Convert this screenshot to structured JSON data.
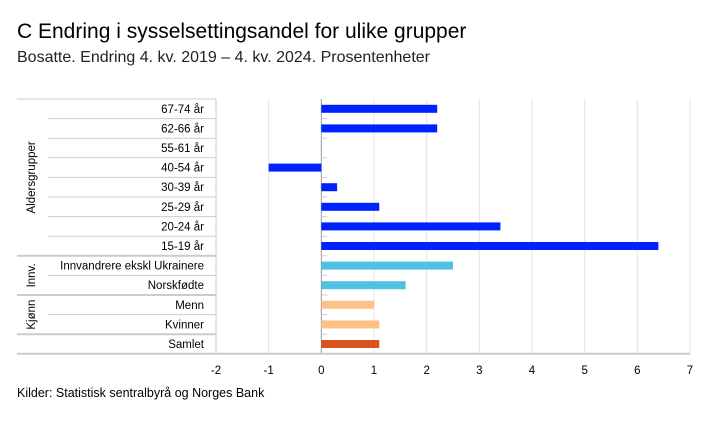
{
  "title": "C Endring i sysselsettingsandel for ulike grupper",
  "subtitle": "Bosatte. Endring 4. kv. 2019 – 4. kv. 2024. Prosentenheter",
  "source": "Kilder: Statistisk sentralbyrå og Norges Bank",
  "chart_data": {
    "type": "bar",
    "orientation": "horizontal",
    "categories": [
      "67-74 år",
      "62-66 år",
      "55-61 år",
      "40-54 år",
      "30-39 år",
      "25-29 år",
      "20-24 år",
      "15-19 år",
      "Innvandrere ekskl Ukrainere",
      "Norskfødte",
      "Menn",
      "Kvinner",
      "Samlet"
    ],
    "values": [
      2.2,
      2.2,
      0,
      -1.0,
      0.3,
      1.1,
      3.4,
      6.4,
      2.5,
      1.6,
      1.0,
      1.1,
      1.1
    ],
    "groups": [
      {
        "label": "Aldersgrupper",
        "rows": [
          0,
          7
        ]
      },
      {
        "label": "Innv.",
        "rows": [
          8,
          9
        ]
      },
      {
        "label": "Kjønn",
        "rows": [
          10,
          11
        ]
      }
    ],
    "colors": [
      "#0022ff",
      "#0022ff",
      "#0022ff",
      "#0022ff",
      "#0022ff",
      "#0022ff",
      "#0022ff",
      "#0022ff",
      "#4fc1e2",
      "#4fc1e2",
      "#fdc085",
      "#fdc085",
      "#d9541e"
    ],
    "xlim": [
      -2,
      7
    ],
    "xticks": [
      -2,
      -1,
      0,
      1,
      2,
      3,
      4,
      5,
      6,
      7
    ],
    "grid": true
  }
}
